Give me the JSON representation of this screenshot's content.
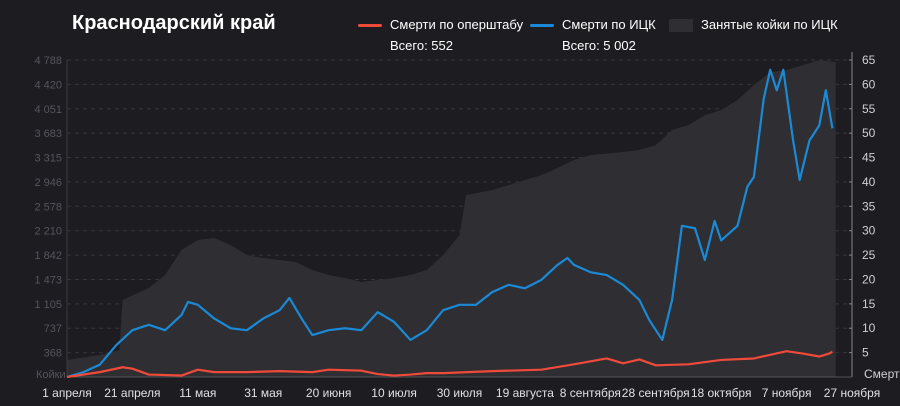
{
  "title": "Краснодарский край",
  "legend": [
    {
      "label": "Смерти по оперштабу",
      "total": "Всего: 552",
      "color": "#f04a3a"
    },
    {
      "label": "Смерти по ИЦК",
      "total": "Всего: 5 002",
      "color": "#1b8ad6"
    },
    {
      "label": "Занятые койки по ИЦК",
      "color": "#2e2e33"
    }
  ],
  "chart_data": {
    "type": "line",
    "title": "Краснодарский край",
    "x_start": "1 апреля",
    "x_unit": "days since 1 April",
    "x_range": [
      0,
      240
    ],
    "x_ticks": [
      "1 апреля",
      "21 апреля",
      "11 мая",
      "31 мая",
      "20 июня",
      "10 июля",
      "30 июля",
      "19 августа",
      "8 сентября",
      "28 сентября",
      "18 октября",
      "7 ноября",
      "27 ноября"
    ],
    "y_left": {
      "label": "Койки",
      "range": [
        0,
        4788
      ],
      "ticks": [
        "368",
        "737",
        "1 105",
        "1 473",
        "1 842",
        "2 210",
        "2 578",
        "2 946",
        "3 315",
        "3 683",
        "4 051",
        "4 420",
        "4 788"
      ]
    },
    "y_right": {
      "label": "Смерти",
      "range": [
        0,
        65
      ],
      "ticks": [
        "5",
        "10",
        "15",
        "20",
        "25",
        "30",
        "35",
        "40",
        "45",
        "50",
        "55",
        "60",
        "65"
      ]
    },
    "grid": true,
    "legend_position": "top-right",
    "series": [
      {
        "name": "Занятые койки по ИЦК",
        "axis": "left",
        "kind": "area",
        "x": [
          0,
          10,
          16,
          17,
          25,
          30,
          35,
          40,
          45,
          50,
          55,
          60,
          70,
          75,
          80,
          85,
          90,
          95,
          100,
          105,
          110,
          115,
          120,
          122,
          130,
          140,
          145,
          150,
          155,
          160,
          170,
          175,
          180,
          185,
          190,
          195,
          200,
          205,
          210,
          215,
          220,
          225,
          230,
          235
        ],
        "y": [
          257,
          332,
          408,
          1163,
          1344,
          1540,
          1918,
          2069,
          2099,
          1993,
          1842,
          1797,
          1737,
          1616,
          1540,
          1495,
          1435,
          1465,
          1495,
          1540,
          1616,
          1842,
          2144,
          2748,
          2824,
          2975,
          3050,
          3156,
          3277,
          3352,
          3398,
          3428,
          3503,
          3730,
          3805,
          3956,
          4032,
          4183,
          4409,
          4606,
          4636,
          4711,
          4787,
          4757
        ]
      },
      {
        "name": "Смерти по ИЦК",
        "axis": "right",
        "kind": "line",
        "x": [
          0,
          5,
          10,
          15,
          20,
          25,
          30,
          35,
          37,
          40,
          45,
          50,
          55,
          60,
          65,
          68,
          72,
          75,
          80,
          85,
          90,
          95,
          100,
          105,
          110,
          115,
          120,
          125,
          130,
          135,
          140,
          145,
          150,
          153,
          155,
          160,
          165,
          170,
          175,
          178,
          182,
          185,
          188,
          192,
          195,
          198,
          200,
          205,
          208,
          210,
          213,
          215,
          217,
          219,
          222,
          224,
          227,
          230,
          232,
          234
        ],
        "y": [
          0,
          1,
          2.5,
          6.5,
          9.6,
          10.7,
          9.6,
          12.7,
          15.4,
          14.8,
          12,
          10,
          9.6,
          12,
          13.7,
          16.2,
          11.7,
          8.6,
          9.6,
          10,
          9.6,
          13.3,
          11.3,
          7.6,
          9.6,
          13.7,
          14.8,
          14.8,
          17.4,
          18.9,
          18.2,
          19.9,
          23,
          24.4,
          23,
          21.5,
          20.9,
          18.9,
          15.8,
          11.7,
          7.6,
          15.8,
          31,
          30.5,
          24,
          32,
          28,
          31,
          39,
          41,
          57,
          63,
          58.8,
          63,
          48.5,
          40.4,
          48.5,
          51.6,
          58.8,
          51
        ]
      },
      {
        "name": "Смерти по оперштабу",
        "axis": "right",
        "kind": "line",
        "x": [
          0,
          10,
          17,
          20,
          25,
          35,
          40,
          45,
          55,
          65,
          75,
          80,
          90,
          95,
          100,
          105,
          110,
          115,
          130,
          145,
          155,
          165,
          170,
          175,
          180,
          190,
          200,
          210,
          220,
          225,
          230,
          233,
          234
        ],
        "y": [
          0,
          1,
          2,
          1.7,
          0.5,
          0.3,
          1.5,
          1,
          1,
          1.2,
          1,
          1.5,
          1.3,
          0.6,
          0.3,
          0.5,
          0.8,
          0.8,
          1.2,
          1.5,
          2.6,
          3.8,
          2.8,
          3.6,
          2.4,
          2.6,
          3.5,
          3.8,
          5.3,
          4.8,
          4.2,
          4.8,
          5.2
        ]
      }
    ]
  }
}
